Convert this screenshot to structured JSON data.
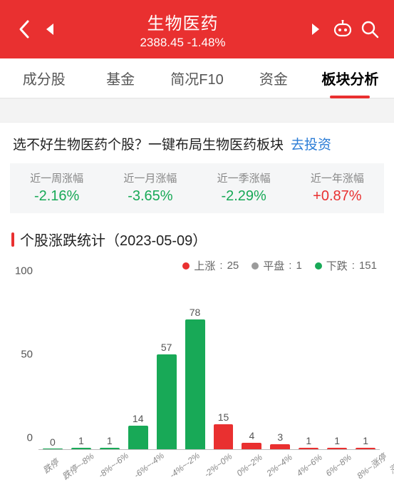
{
  "header": {
    "title": "生物医药",
    "index_value": "2388.45",
    "change_pct": "-1.48%"
  },
  "tabs": {
    "items": [
      "成分股",
      "基金",
      "简况F10",
      "资金",
      "板块分析"
    ],
    "active_index": 4
  },
  "promo": {
    "text": "选不好生物医药个股？一键布局生物医药板块",
    "link_text": "去投资"
  },
  "period_stats": [
    {
      "label": "近一周涨幅",
      "value": "-2.16%",
      "direction": "down"
    },
    {
      "label": "近一月涨幅",
      "value": "-3.65%",
      "direction": "down"
    },
    {
      "label": "近一季涨幅",
      "value": "-2.29%",
      "direction": "down"
    },
    {
      "label": "近一年涨幅",
      "value": "+0.87%",
      "direction": "up"
    }
  ],
  "section": {
    "title": "个股涨跌统计（2023-05-09）"
  },
  "legend": {
    "up": {
      "label": "上涨",
      "count": 25,
      "color": "#e93030"
    },
    "flat": {
      "label": "平盘",
      "count": 1,
      "color": "#9b9b9b"
    },
    "down": {
      "label": "下跌",
      "count": 151,
      "color": "#18a957"
    }
  },
  "chart": {
    "type": "bar",
    "y_axis": {
      "min": 0,
      "max": 100,
      "ticks": [
        0,
        50,
        100
      ],
      "fontsize": 15
    },
    "bar_label_fontsize": 14,
    "x_label_fontsize": 12,
    "x_label_rotation_deg": -38,
    "background_color": "#ffffff",
    "axis_color": "#bbbbbb",
    "categories": [
      "跌停",
      "跌停~-8%",
      "-8%~-6%",
      "-6%~-4%",
      "-4%~-2%",
      "-2%~0%",
      "0%~2%",
      "2%~4%",
      "4%~6%",
      "6%~8%",
      "8%~涨停",
      "涨停"
    ],
    "values": [
      0,
      1,
      1,
      14,
      57,
      78,
      15,
      4,
      3,
      1,
      1,
      1
    ],
    "colors": [
      "#18a957",
      "#18a957",
      "#18a957",
      "#18a957",
      "#18a957",
      "#18a957",
      "#e93030",
      "#e93030",
      "#e93030",
      "#e93030",
      "#e93030",
      "#e93030"
    ],
    "bar_width_ratio": 0.7
  },
  "colors": {
    "brand_red": "#e93030",
    "green": "#18a957",
    "gray": "#9b9b9b",
    "text_primary": "#222222",
    "text_secondary": "#888888",
    "bg_panel": "#f5f6f7"
  }
}
